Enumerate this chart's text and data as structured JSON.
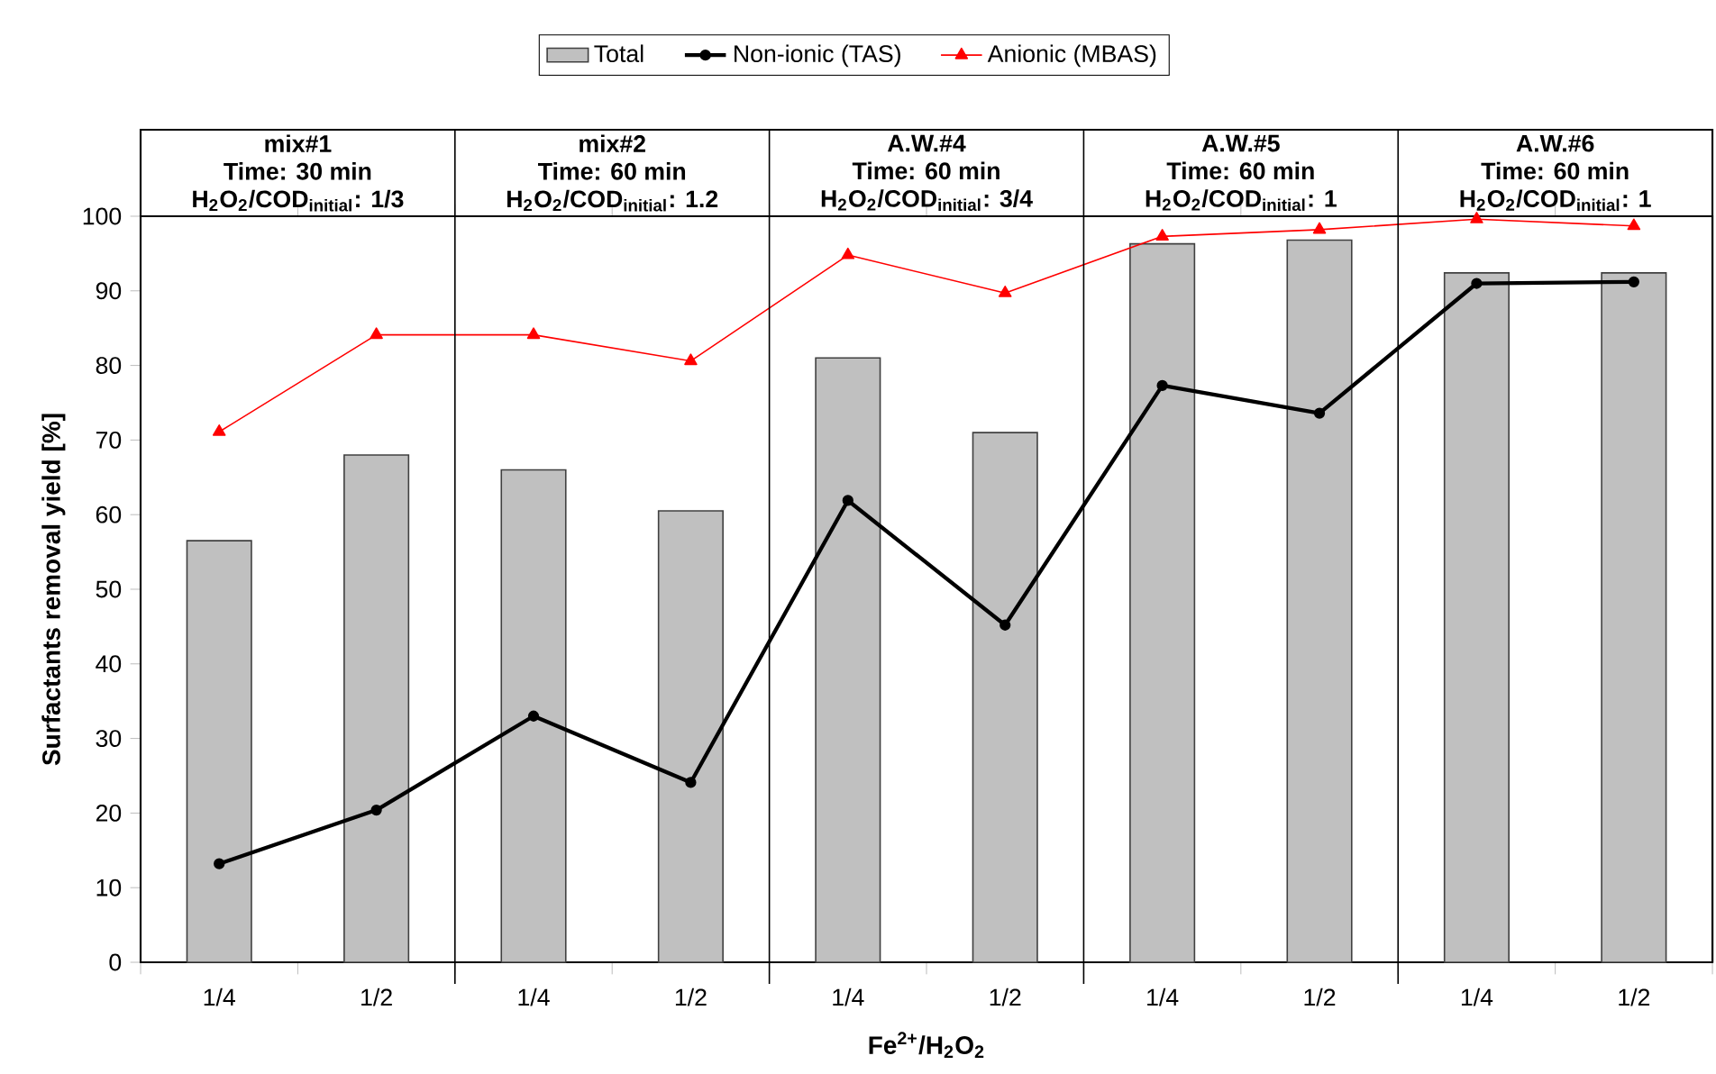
{
  "chart_data": {
    "type": "bar",
    "ylabel": "Surfactants removal yield [%]",
    "xlabel": "Fe$^{2+}$/H$_{2}$O$_{2}$",
    "categories": [
      "1/4",
      "1/2",
      "1/4",
      "1/2",
      "1/4",
      "1/2",
      "1/4",
      "1/2",
      "1/4",
      "1/2"
    ],
    "series": [
      {
        "name": "Total",
        "color": "#c0c0c0",
        "values": [
          56.5,
          68.0,
          66.0,
          60.5,
          81.0,
          71.0,
          96.3,
          96.8,
          92.4,
          92.4
        ]
      },
      {
        "name": "Non-ionic (TAS)",
        "type": "line",
        "color": "#000000",
        "marker": "circle",
        "values": [
          13.2,
          20.4,
          33.0,
          24.1,
          61.9,
          45.2,
          77.3,
          73.6,
          91.0,
          91.2
        ]
      },
      {
        "name": "Anionic (MBAS)",
        "type": "line",
        "color": "#ff0000",
        "marker": "triangle",
        "values": [
          71.1,
          84.1,
          84.1,
          80.6,
          94.8,
          89.7,
          97.3,
          98.2,
          99.6,
          98.7
        ]
      }
    ],
    "annotations": [
      "mix#1",
      "Time: 30 min",
      "H$_{2}$O$_{2}$/COD$_{initial}$: 1/3",
      "mix#2",
      "Time: 60 min",
      "H$_{2}$O$_{2}$/COD$_{initial}$: 1.2",
      "A.W.#4",
      "Time: 60 min",
      "H$_{2}$O$_{2}$/COD$_{initial}$: 3/4",
      "A.W.#5",
      "Time: 60 min",
      "H$_{2}$O$_{2}$/COD$_{initial}$: 1",
      "A.W.#6",
      "Time: 60 min",
      "H$_{2}$O$_{2}$/COD$_{initial}$: 1"
    ],
    "ylim": [
      0,
      100
    ],
    "yticks": [
      0,
      10,
      20,
      30,
      40,
      50,
      60,
      70,
      80,
      90,
      100
    ],
    "legend": "top",
    "grid": false
  }
}
